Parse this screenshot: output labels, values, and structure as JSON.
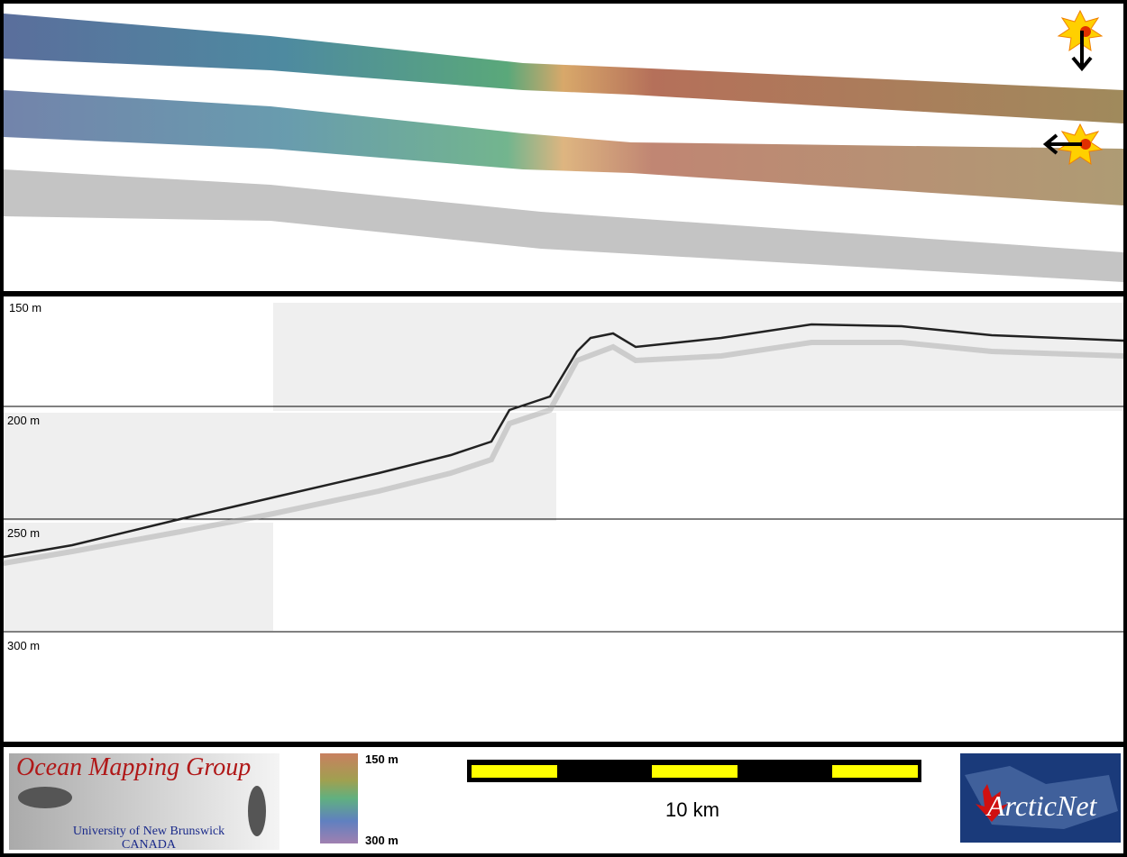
{
  "profile": {
    "depth_labels": [
      "150 m",
      "200 m",
      "250 m",
      "300 m"
    ]
  },
  "colorbar": {
    "top_label": "150 m",
    "bottom_label": "300 m"
  },
  "scale_bar": {
    "label": "10 km"
  },
  "logos": {
    "ocean_mapping": {
      "title": "Ocean Mapping Group",
      "line1": "University of New Brunswick",
      "line2": "CANADA"
    },
    "arcticnet": {
      "text": "ArcticNet"
    }
  }
}
